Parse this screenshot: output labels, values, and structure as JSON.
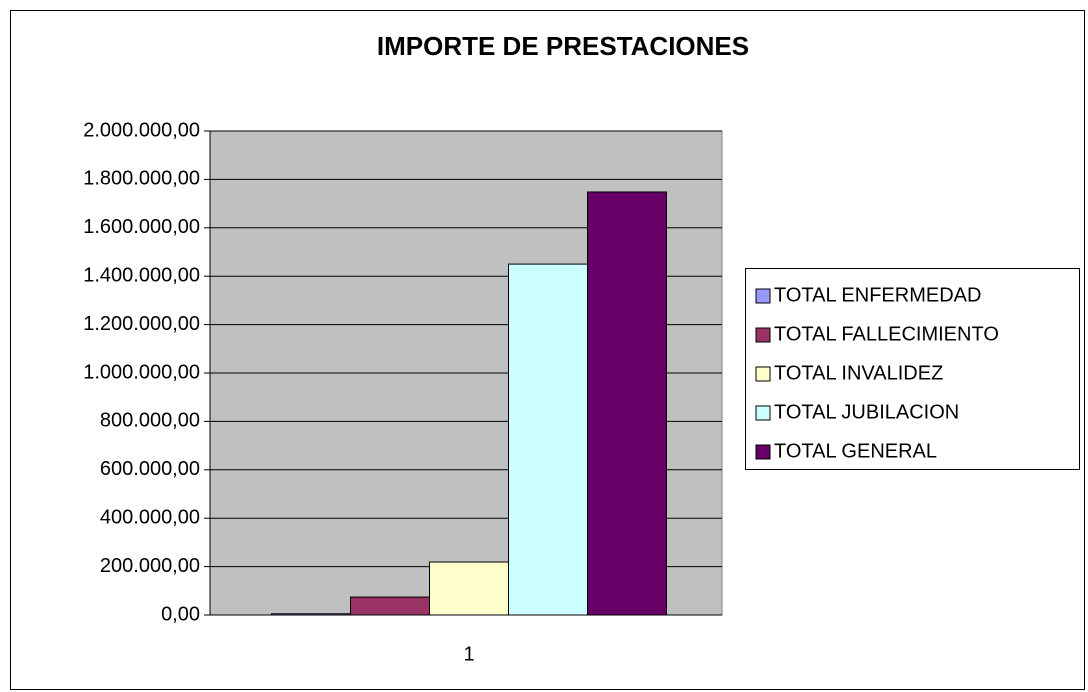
{
  "chart_data": {
    "type": "bar",
    "title": "IMPORTE DE PRESTACIONES",
    "categories": [
      "1"
    ],
    "series": [
      {
        "name": "TOTAL ENFERMEDAD",
        "color": "#9999ff",
        "values": [
          5000
        ]
      },
      {
        "name": "TOTAL FALLECIMIENTO",
        "color": "#993366",
        "values": [
          74000
        ]
      },
      {
        "name": "TOTAL INVALIDEZ",
        "color": "#ffffcc",
        "values": [
          219000
        ]
      },
      {
        "name": "TOTAL JUBILACION",
        "color": "#ccffff",
        "values": [
          1450000
        ]
      },
      {
        "name": "TOTAL GENERAL",
        "color": "#660066",
        "values": [
          1748000
        ]
      }
    ],
    "ylim": [
      0,
      2000000
    ],
    "yticks": [
      {
        "value": 0,
        "label": "0,00"
      },
      {
        "value": 200000,
        "label": "200.000,00"
      },
      {
        "value": 400000,
        "label": "400.000,00"
      },
      {
        "value": 600000,
        "label": "600.000,00"
      },
      {
        "value": 800000,
        "label": "800.000,00"
      },
      {
        "value": 1000000,
        "label": "1.000.000,00"
      },
      {
        "value": 1200000,
        "label": "1.200.000,00"
      },
      {
        "value": 1400000,
        "label": "1.400.000,00"
      },
      {
        "value": 1600000,
        "label": "1.600.000,00"
      },
      {
        "value": 1800000,
        "label": "1.800.000,00"
      },
      {
        "value": 2000000,
        "label": "2.000.000,00"
      }
    ],
    "grid": true,
    "legend": "right"
  }
}
